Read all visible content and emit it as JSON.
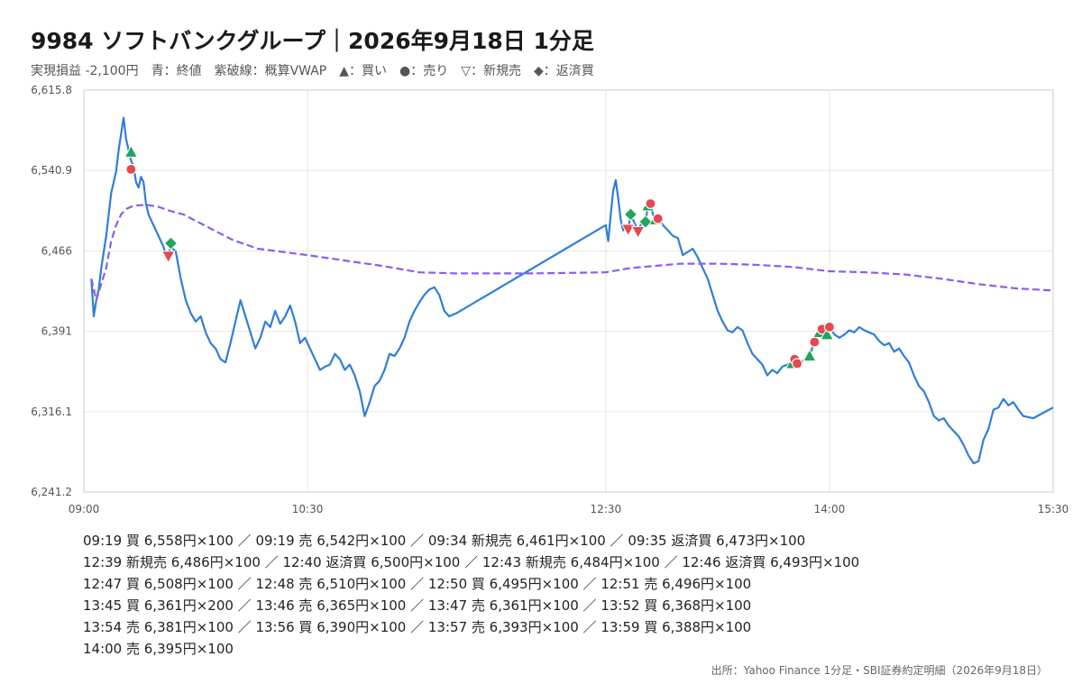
{
  "header": {
    "title": "9984 ソフトバンクグループ｜2026年9月18日 1分足",
    "subtitle": "実現損益 -2,100円　青：終値　紫破線：概算VWAP　▲：買い　●：売り　▽：新規売　◆：返済買"
  },
  "trade_lines": [
    "09:19 買 6,558円×100 ／ 09:19 売 6,542円×100 ／ 09:34 新規売 6,461円×100 ／ 09:35 返済買 6,473円×100",
    "12:39 新規売 6,486円×100 ／ 12:40 返済買 6,500円×100 ／ 12:43 新規売 6,484円×100 ／ 12:46 返済買 6,493円×100",
    "12:47 買 6,508円×100 ／ 12:48 売 6,510円×100 ／ 12:50 買 6,495円×100 ／ 12:51 売 6,496円×100",
    "13:45 買 6,361円×200 ／ 13:46 売 6,365円×100 ／ 13:47 売 6,361円×100 ／ 13:52 買 6,368円×100",
    "13:54 売 6,381円×100 ／ 13:56 買 6,390円×100 ／ 13:57 売 6,393円×100 ／ 13:59 買 6,388円×100",
    "14:00 売 6,395円×100"
  ],
  "source": "出所：Yahoo Finance 1分足・SBI証券約定明細（2026年9月18日）",
  "colors": {
    "close": "#2f7ed8",
    "vwap": "#8b5cf6",
    "buy": "#22a45d",
    "sell": "#e5484d",
    "grid": "#e6e6e6",
    "axis_text": "#555555"
  },
  "chart_data": {
    "type": "line",
    "title": "9984 ソフトバンクグループ｜2026年9月18日 1分足",
    "xlabel": "",
    "ylabel": "",
    "x_ticks": [
      "09:00",
      "10:30",
      "12:30",
      "14:00",
      "15:30"
    ],
    "y_ticks": [
      "6,241.2",
      "6,316.1",
      "6,391",
      "6,466",
      "6,540.9",
      "6,615.8"
    ],
    "ylim": [
      6241.2,
      6615.8
    ],
    "grid": true,
    "series": [
      {
        "role": "close",
        "points": [
          [
            "09:03",
            6440
          ],
          [
            "09:04",
            6405
          ],
          [
            "09:05",
            6420
          ],
          [
            "09:06",
            6430
          ],
          [
            "09:07",
            6450
          ],
          [
            "09:09",
            6480
          ],
          [
            "09:11",
            6520
          ],
          [
            "09:13",
            6540
          ],
          [
            "09:14",
            6560
          ],
          [
            "09:15",
            6575
          ],
          [
            "09:16",
            6590
          ],
          [
            "09:17",
            6570
          ],
          [
            "09:18",
            6560
          ],
          [
            "09:19",
            6550
          ],
          [
            "09:20",
            6545
          ],
          [
            "09:21",
            6530
          ],
          [
            "09:22",
            6525
          ],
          [
            "09:23",
            6535
          ],
          [
            "09:24",
            6530
          ],
          [
            "09:25",
            6510
          ],
          [
            "09:26",
            6500
          ],
          [
            "09:28",
            6490
          ],
          [
            "09:30",
            6480
          ],
          [
            "09:32",
            6470
          ],
          [
            "09:33",
            6462
          ],
          [
            "09:34",
            6463
          ],
          [
            "09:35",
            6470
          ],
          [
            "09:37",
            6465
          ],
          [
            "09:39",
            6440
          ],
          [
            "09:41",
            6420
          ],
          [
            "09:43",
            6408
          ],
          [
            "09:45",
            6400
          ],
          [
            "09:47",
            6405
          ],
          [
            "09:49",
            6390
          ],
          [
            "09:51",
            6380
          ],
          [
            "09:53",
            6375
          ],
          [
            "09:55",
            6365
          ],
          [
            "09:57",
            6362
          ],
          [
            "09:59",
            6380
          ],
          [
            "10:01",
            6400
          ],
          [
            "10:03",
            6420
          ],
          [
            "10:05",
            6405
          ],
          [
            "10:07",
            6390
          ],
          [
            "10:09",
            6375
          ],
          [
            "10:11",
            6385
          ],
          [
            "10:13",
            6400
          ],
          [
            "10:15",
            6395
          ],
          [
            "10:17",
            6410
          ],
          [
            "10:19",
            6398
          ],
          [
            "10:21",
            6405
          ],
          [
            "10:23",
            6415
          ],
          [
            "10:25",
            6400
          ],
          [
            "10:27",
            6380
          ],
          [
            "10:29",
            6385
          ],
          [
            "10:31",
            6375
          ],
          [
            "10:33",
            6365
          ],
          [
            "10:35",
            6355
          ],
          [
            "10:37",
            6358
          ],
          [
            "10:39",
            6360
          ],
          [
            "10:41",
            6370
          ],
          [
            "10:43",
            6365
          ],
          [
            "10:45",
            6355
          ],
          [
            "10:47",
            6360
          ],
          [
            "10:49",
            6350
          ],
          [
            "10:51",
            6335
          ],
          [
            "10:53",
            6312
          ],
          [
            "10:55",
            6325
          ],
          [
            "10:57",
            6340
          ],
          [
            "10:59",
            6345
          ],
          [
            "11:01",
            6355
          ],
          [
            "11:03",
            6370
          ],
          [
            "11:05",
            6368
          ],
          [
            "11:07",
            6375
          ],
          [
            "11:09",
            6385
          ],
          [
            "11:11",
            6400
          ],
          [
            "11:13",
            6410
          ],
          [
            "11:15",
            6418
          ],
          [
            "11:17",
            6425
          ],
          [
            "11:19",
            6430
          ],
          [
            "11:21",
            6432
          ],
          [
            "11:23",
            6425
          ],
          [
            "11:25",
            6410
          ],
          [
            "11:27",
            6405
          ],
          [
            "11:30",
            6408
          ],
          [
            "12:30",
            6490
          ],
          [
            "12:31",
            6475
          ],
          [
            "12:32",
            6500
          ],
          [
            "12:33",
            6522
          ],
          [
            "12:34",
            6532
          ],
          [
            "12:35",
            6515
          ],
          [
            "12:36",
            6495
          ],
          [
            "12:37",
            6485
          ],
          [
            "12:38",
            6490
          ],
          [
            "12:39",
            6486
          ],
          [
            "12:40",
            6500
          ],
          [
            "12:42",
            6490
          ],
          [
            "12:43",
            6484
          ],
          [
            "12:44",
            6490
          ],
          [
            "12:46",
            6493
          ],
          [
            "12:47",
            6508
          ],
          [
            "12:48",
            6510
          ],
          [
            "12:49",
            6500
          ],
          [
            "12:50",
            6495
          ],
          [
            "12:51",
            6496
          ],
          [
            "12:53",
            6490
          ],
          [
            "12:55",
            6485
          ],
          [
            "12:57",
            6480
          ],
          [
            "12:59",
            6478
          ],
          [
            "13:00",
            6470
          ],
          [
            "13:01",
            6462
          ],
          [
            "13:03",
            6465
          ],
          [
            "13:05",
            6468
          ],
          [
            "13:07",
            6460
          ],
          [
            "13:09",
            6450
          ],
          [
            "13:11",
            6440
          ],
          [
            "13:13",
            6425
          ],
          [
            "13:15",
            6410
          ],
          [
            "13:17",
            6400
          ],
          [
            "13:19",
            6392
          ],
          [
            "13:21",
            6390
          ],
          [
            "13:23",
            6395
          ],
          [
            "13:25",
            6392
          ],
          [
            "13:27",
            6380
          ],
          [
            "13:29",
            6370
          ],
          [
            "13:31",
            6365
          ],
          [
            "13:33",
            6360
          ],
          [
            "13:35",
            6350
          ],
          [
            "13:37",
            6355
          ],
          [
            "13:39",
            6352
          ],
          [
            "13:41",
            6358
          ],
          [
            "13:43",
            6360
          ],
          [
            "13:45",
            6361
          ],
          [
            "13:46",
            6365
          ],
          [
            "13:47",
            6361
          ],
          [
            "13:49",
            6363
          ],
          [
            "13:51",
            6366
          ],
          [
            "13:52",
            6368
          ],
          [
            "13:53",
            6375
          ],
          [
            "13:54",
            6381
          ],
          [
            "13:55",
            6385
          ],
          [
            "13:56",
            6390
          ],
          [
            "13:57",
            6393
          ],
          [
            "13:58",
            6390
          ],
          [
            "13:59",
            6388
          ],
          [
            "14:00",
            6395
          ],
          [
            "14:02",
            6388
          ],
          [
            "14:04",
            6385
          ],
          [
            "14:06",
            6388
          ],
          [
            "14:08",
            6392
          ],
          [
            "14:10",
            6390
          ],
          [
            "14:12",
            6395
          ],
          [
            "14:14",
            6392
          ],
          [
            "14:16",
            6390
          ],
          [
            "14:18",
            6388
          ],
          [
            "14:20",
            6382
          ],
          [
            "14:22",
            6378
          ],
          [
            "14:24",
            6380
          ],
          [
            "14:26",
            6372
          ],
          [
            "14:28",
            6375
          ],
          [
            "14:30",
            6368
          ],
          [
            "14:32",
            6362
          ],
          [
            "14:34",
            6350
          ],
          [
            "14:36",
            6340
          ],
          [
            "14:38",
            6335
          ],
          [
            "14:40",
            6325
          ],
          [
            "14:42",
            6312
          ],
          [
            "14:44",
            6308
          ],
          [
            "14:46",
            6310
          ],
          [
            "14:48",
            6303
          ],
          [
            "14:50",
            6298
          ],
          [
            "14:52",
            6293
          ],
          [
            "14:54",
            6285
          ],
          [
            "14:56",
            6275
          ],
          [
            "14:58",
            6268
          ],
          [
            "15:00",
            6270
          ],
          [
            "15:02",
            6290
          ],
          [
            "15:04",
            6300
          ],
          [
            "15:06",
            6318
          ],
          [
            "15:08",
            6320
          ],
          [
            "15:10",
            6328
          ],
          [
            "15:12",
            6322
          ],
          [
            "15:14",
            6325
          ],
          [
            "15:16",
            6318
          ],
          [
            "15:18",
            6312
          ],
          [
            "15:22",
            6310
          ],
          [
            "15:26",
            6315
          ],
          [
            "15:30",
            6320
          ]
        ]
      },
      {
        "role": "vwap",
        "points": [
          [
            "09:03",
            6440
          ],
          [
            "09:05",
            6420
          ],
          [
            "09:07",
            6435
          ],
          [
            "09:09",
            6450
          ],
          [
            "09:11",
            6475
          ],
          [
            "09:13",
            6490
          ],
          [
            "09:15",
            6500
          ],
          [
            "09:17",
            6505
          ],
          [
            "09:20",
            6508
          ],
          [
            "09:25",
            6509
          ],
          [
            "09:30",
            6507
          ],
          [
            "09:35",
            6503
          ],
          [
            "09:40",
            6500
          ],
          [
            "09:45",
            6494
          ],
          [
            "09:50",
            6488
          ],
          [
            "09:55",
            6482
          ],
          [
            "10:00",
            6476
          ],
          [
            "10:05",
            6472
          ],
          [
            "10:10",
            6468
          ],
          [
            "10:20",
            6465
          ],
          [
            "10:30",
            6462
          ],
          [
            "10:45",
            6457
          ],
          [
            "11:00",
            6452
          ],
          [
            "11:15",
            6446
          ],
          [
            "11:30",
            6445
          ],
          [
            "12:00",
            6445
          ],
          [
            "12:30",
            6446
          ],
          [
            "12:40",
            6450
          ],
          [
            "12:50",
            6452
          ],
          [
            "13:00",
            6454
          ],
          [
            "13:15",
            6454
          ],
          [
            "13:30",
            6453
          ],
          [
            "13:45",
            6451
          ],
          [
            "14:00",
            6447
          ],
          [
            "14:15",
            6446
          ],
          [
            "14:30",
            6444
          ],
          [
            "14:45",
            6440
          ],
          [
            "15:00",
            6435
          ],
          [
            "15:15",
            6431
          ],
          [
            "15:30",
            6429
          ]
        ]
      }
    ],
    "markers": [
      {
        "time": "09:19",
        "price": 6558,
        "kind": "buy"
      },
      {
        "time": "09:19",
        "price": 6542,
        "kind": "sell"
      },
      {
        "time": "09:34",
        "price": 6461,
        "kind": "short"
      },
      {
        "time": "09:35",
        "price": 6473,
        "kind": "cover"
      },
      {
        "time": "12:39",
        "price": 6486,
        "kind": "short"
      },
      {
        "time": "12:40",
        "price": 6500,
        "kind": "cover"
      },
      {
        "time": "12:43",
        "price": 6484,
        "kind": "short"
      },
      {
        "time": "12:46",
        "price": 6493,
        "kind": "cover"
      },
      {
        "time": "12:47",
        "price": 6508,
        "kind": "buy"
      },
      {
        "time": "12:48",
        "price": 6510,
        "kind": "sell"
      },
      {
        "time": "12:50",
        "price": 6495,
        "kind": "buy"
      },
      {
        "time": "12:51",
        "price": 6496,
        "kind": "sell"
      },
      {
        "time": "13:45",
        "price": 6361,
        "kind": "buy"
      },
      {
        "time": "13:46",
        "price": 6365,
        "kind": "sell"
      },
      {
        "time": "13:47",
        "price": 6361,
        "kind": "sell"
      },
      {
        "time": "13:52",
        "price": 6368,
        "kind": "buy"
      },
      {
        "time": "13:54",
        "price": 6381,
        "kind": "sell"
      },
      {
        "time": "13:56",
        "price": 6390,
        "kind": "buy"
      },
      {
        "time": "13:57",
        "price": 6393,
        "kind": "sell"
      },
      {
        "time": "13:59",
        "price": 6388,
        "kind": "buy"
      },
      {
        "time": "14:00",
        "price": 6395,
        "kind": "sell"
      }
    ]
  }
}
